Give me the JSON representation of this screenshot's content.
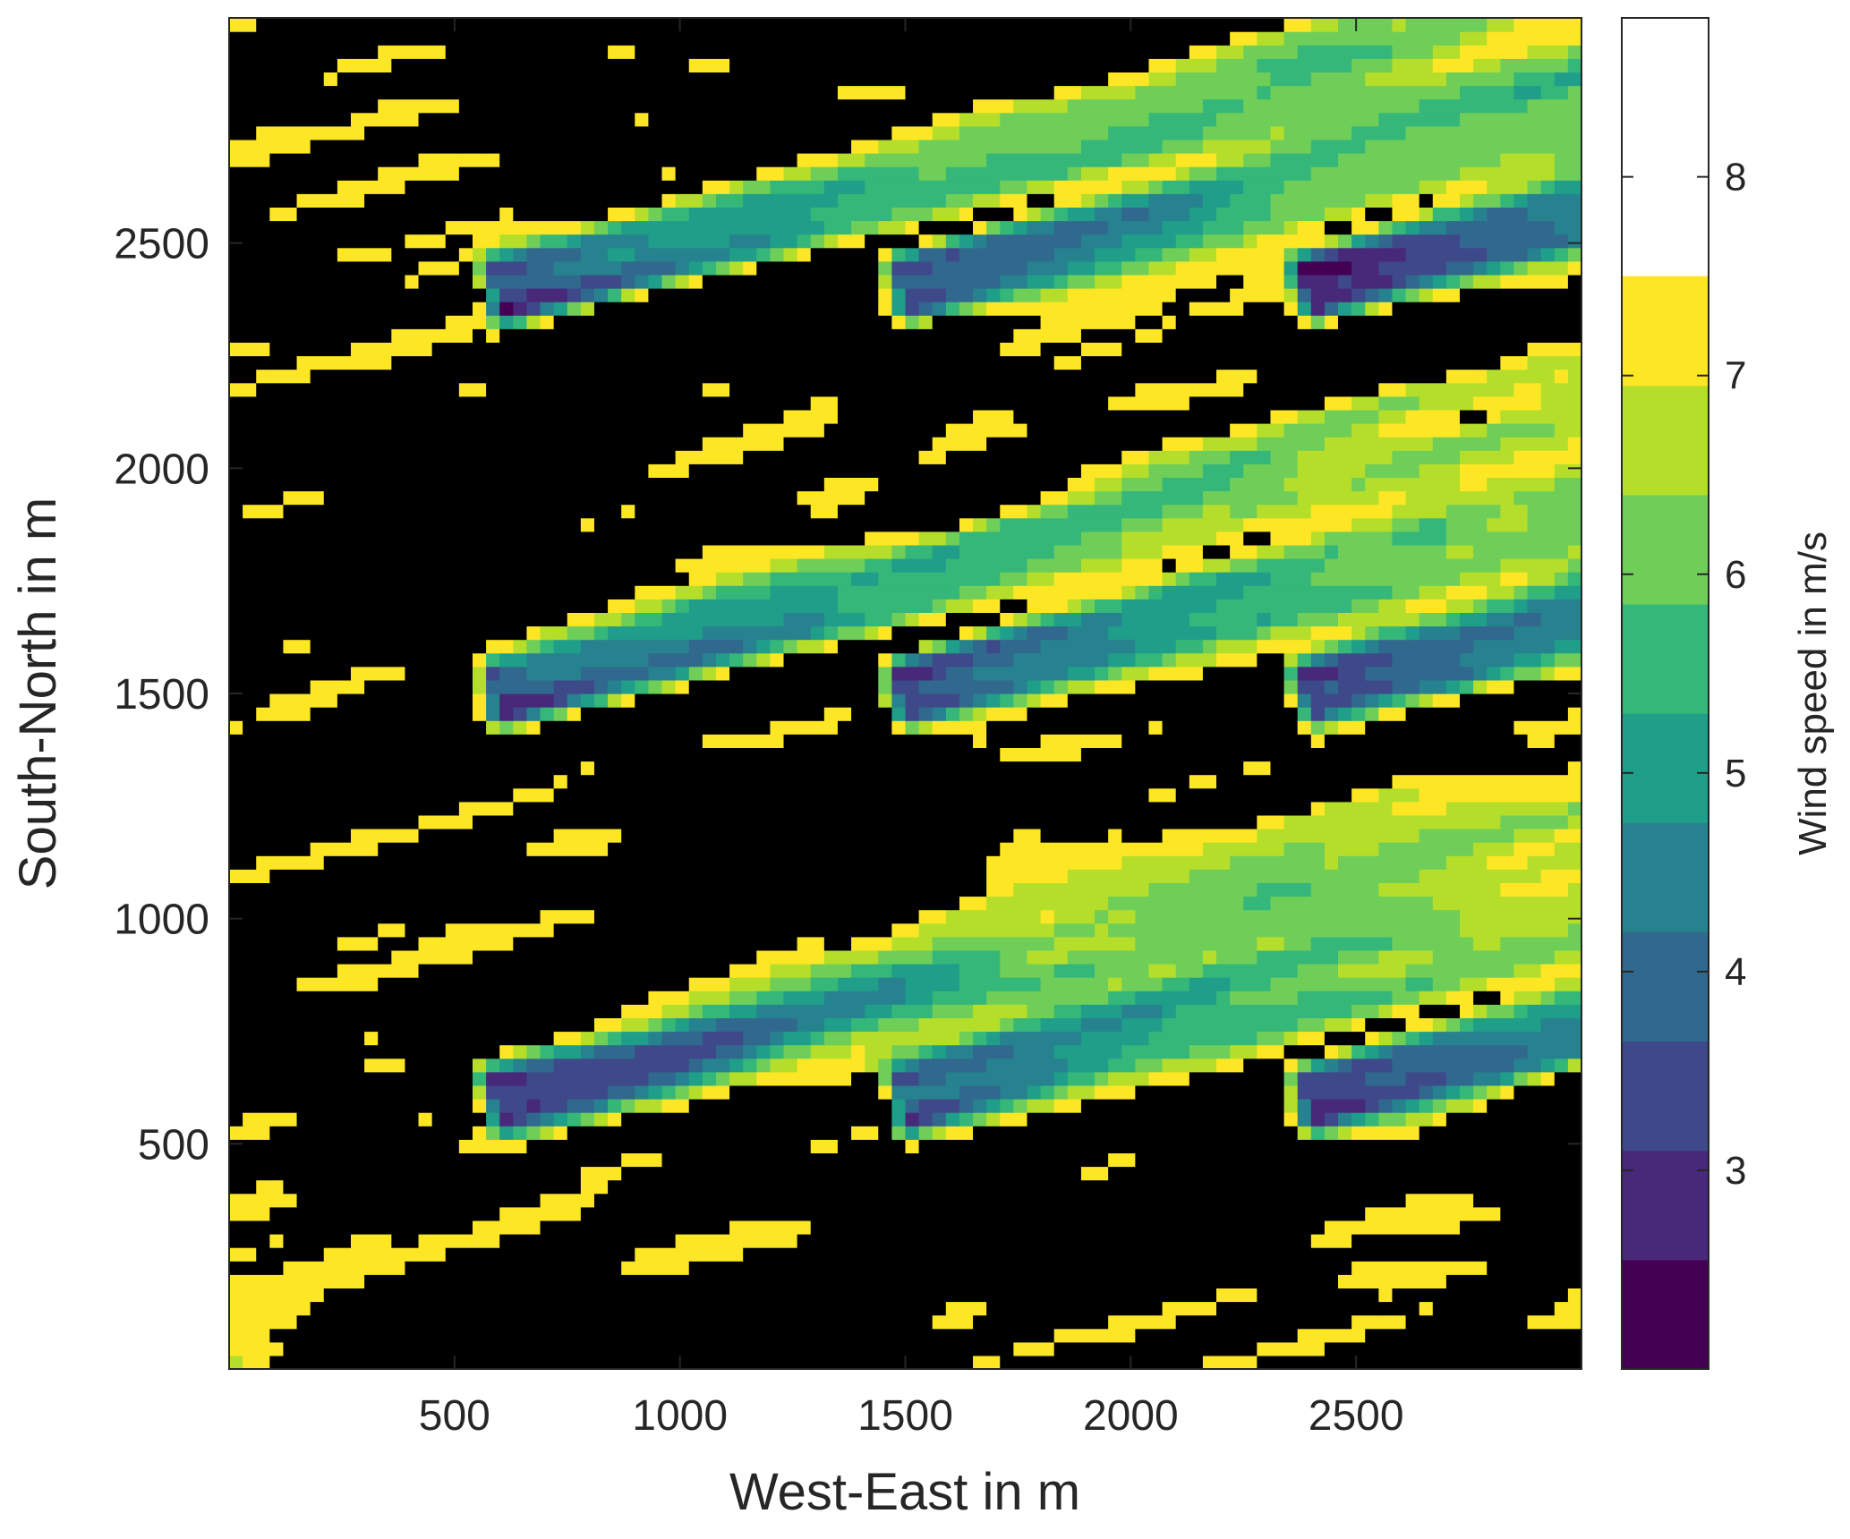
{
  "chart_data": {
    "type": "contour",
    "xlabel": "West-East in m",
    "ylabel": "South-North in m",
    "xlim": [
      0,
      3000
    ],
    "ylim": [
      0,
      3000
    ],
    "xticks": [
      500,
      1000,
      1500,
      2000,
      2500
    ],
    "yticks": [
      500,
      1000,
      1500,
      2000,
      2500
    ],
    "xtick_labels": [
      "500",
      "1000",
      "1500",
      "2000",
      "2500"
    ],
    "ytick_labels": [
      "500",
      "1000",
      "1500",
      "2000",
      "2500"
    ],
    "colorbar": {
      "label": "Wind speed in m/s",
      "limits": [
        2,
        8.8
      ],
      "levels": [
        2.0,
        2.55,
        3.1,
        3.65,
        4.2,
        4.75,
        5.3,
        5.85,
        6.4,
        6.95,
        7.5,
        8.05,
        8.8
      ],
      "ticks": [
        3,
        4,
        5,
        6,
        7,
        8
      ],
      "tick_labels": [
        "3",
        "4",
        "5",
        "6",
        "7",
        "8"
      ],
      "colors": [
        "#440154",
        "#482878",
        "#3e4989",
        "#31688e",
        "#26828e",
        "#1f9e89",
        "#35b779",
        "#6ece58",
        "#b5de2b",
        "#fde725"
      ]
    },
    "background_speed": 8.0,
    "flow_direction_deg": 15,
    "turbines": [
      {
        "x": 600,
        "y": 600
      },
      {
        "x": 1500,
        "y": 600
      },
      {
        "x": 2400,
        "y": 600
      },
      {
        "x": 600,
        "y": 1500
      },
      {
        "x": 1500,
        "y": 1500
      },
      {
        "x": 2400,
        "y": 1500
      },
      {
        "x": 600,
        "y": 2400
      },
      {
        "x": 1500,
        "y": 2400
      },
      {
        "x": 2400,
        "y": 2400
      }
    ],
    "rotor_diameter_m": 160,
    "min_wake_speed": 2.2,
    "grid": false,
    "legend": "colorbar-right"
  }
}
